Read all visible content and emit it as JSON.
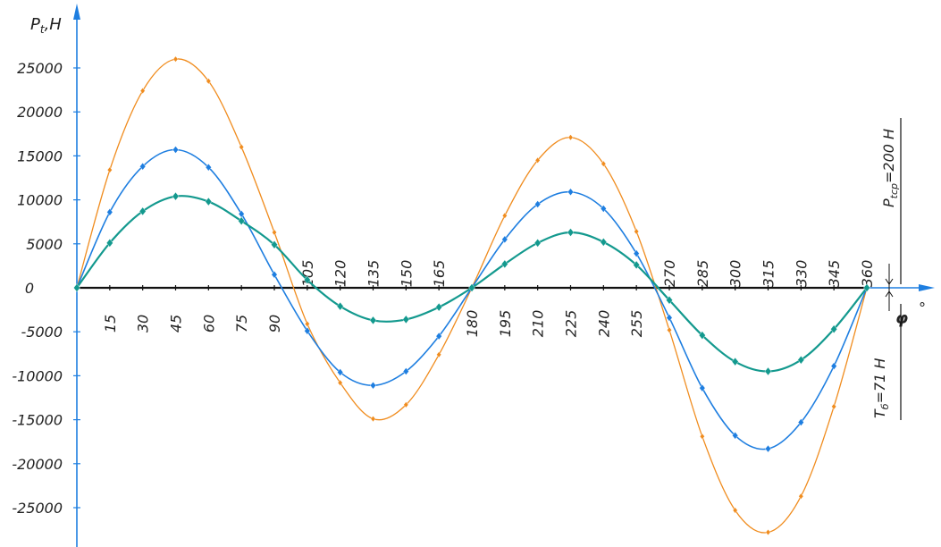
{
  "chart_data": {
    "type": "line",
    "ylabel": "P",
    "ylabel_sub": "t",
    "ylabel_unit": ",Н",
    "xlabel": "φ",
    "xlabel_unit": "°",
    "xlim": [
      0,
      360
    ],
    "ylim": [
      -28000,
      28000
    ],
    "grid": false,
    "y_ticks": [
      25000,
      20000,
      15000,
      10000,
      5000,
      0,
      -5000,
      -10000,
      -15000,
      -20000,
      -25000
    ],
    "x_ticks": [
      15,
      30,
      45,
      60,
      75,
      90,
      105,
      120,
      135,
      150,
      165,
      180,
      195,
      210,
      225,
      240,
      255,
      270,
      285,
      300,
      315,
      330,
      345,
      360
    ],
    "annotations": {
      "p_avg": {
        "main": "P",
        "sub": "tср",
        "rest": "=200 Н"
      },
      "t_val": {
        "main": "T",
        "sub": "б",
        "rest": "=71 Н"
      }
    },
    "series": [
      {
        "color": "#f08c1e",
        "x": [
          0,
          15,
          30,
          45,
          60,
          75,
          90,
          105,
          120,
          135,
          150,
          165,
          180,
          195,
          210,
          225,
          240,
          255,
          270,
          285,
          300,
          315,
          330,
          345,
          360
        ],
        "values": [
          0,
          13400,
          22400,
          26000,
          23500,
          16000,
          6300,
          -4100,
          -10800,
          -14900,
          -13300,
          -7600,
          0,
          8200,
          14500,
          17100,
          14100,
          6400,
          -4800,
          -16900,
          -25300,
          -27800,
          -23700,
          -13500,
          0
        ]
      },
      {
        "color": "#1e7ee0",
        "x": [
          0,
          15,
          30,
          45,
          60,
          75,
          90,
          105,
          120,
          135,
          150,
          165,
          180,
          195,
          210,
          225,
          240,
          255,
          270,
          285,
          300,
          315,
          330,
          345,
          360
        ],
        "values": [
          0,
          8600,
          13800,
          15700,
          13700,
          8400,
          1500,
          -4900,
          -9600,
          -11100,
          -9500,
          -5500,
          0,
          5500,
          9500,
          10900,
          9000,
          3900,
          -3400,
          -11400,
          -16800,
          -18300,
          -15300,
          -8900,
          0
        ]
      },
      {
        "color": "#13998e",
        "x": [
          0,
          15,
          30,
          45,
          60,
          75,
          90,
          105,
          120,
          135,
          150,
          165,
          180,
          195,
          210,
          225,
          240,
          255,
          270,
          285,
          300,
          315,
          330,
          345,
          360
        ],
        "values": [
          0,
          5100,
          8700,
          10400,
          9800,
          7600,
          4900,
          900,
          -2100,
          -3700,
          -3600,
          -2200,
          0,
          2700,
          5100,
          6300,
          5200,
          2600,
          -1400,
          -5400,
          -8400,
          -9500,
          -8200,
          -4700,
          0
        ]
      }
    ]
  }
}
